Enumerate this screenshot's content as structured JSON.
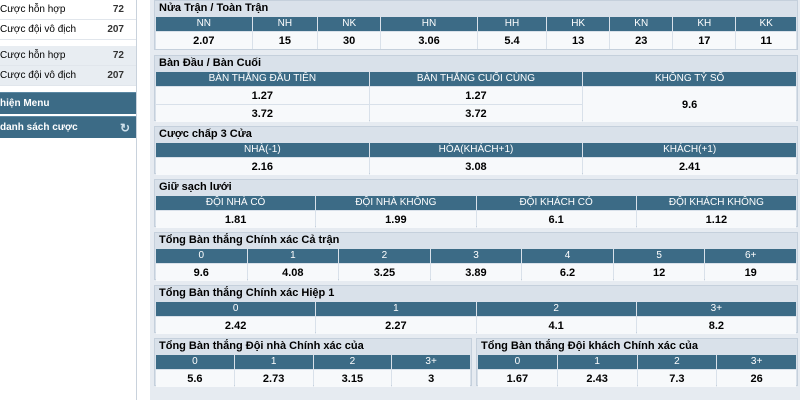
{
  "sidebar": {
    "items": [
      {
        "label": "Cược hỗn hợp",
        "count": "72"
      },
      {
        "label": "Cược đội vô địch",
        "count": "207"
      },
      {
        "label": "Cược hỗn hợp",
        "count": "72"
      },
      {
        "label": "Cược đội vô địch",
        "count": "207"
      }
    ],
    "menu_label": "hiện Menu",
    "bets_label": "danh sách cược"
  },
  "halftime": {
    "title": "Nửa Trận / Toàn Trận",
    "headers": [
      "NN",
      "NH",
      "NK",
      "HN",
      "HH",
      "HK",
      "KN",
      "KH",
      "KK"
    ],
    "values": [
      "2.07",
      "15",
      "30",
      "3.06",
      "5.4",
      "13",
      "23",
      "17",
      "11"
    ]
  },
  "first_last": {
    "title": "Bàn Đầu / Bàn Cuối",
    "headers": [
      "BÀN THẮNG ĐẦU TIÊN",
      "BÀN THẮNG CUỐI CÙNG",
      "KHÔNG TỶ SỐ"
    ],
    "row1": [
      "1.27",
      "1.27"
    ],
    "row2": [
      "3.72",
      "3.72"
    ],
    "no_score": "9.6"
  },
  "handicap3": {
    "title": "Cược chấp 3 Cửa",
    "headers": [
      "NHÀ(-1)",
      "HÒA(KHÁCH+1)",
      "KHÁCH(+1)"
    ],
    "values": [
      "2.16",
      "3.08",
      "2.41"
    ]
  },
  "clean_sheet": {
    "title": "Giữ sạch lưới",
    "headers": [
      "ĐỘI NHÀ CÓ",
      "ĐỘI NHÀ KHÔNG",
      "ĐỘI KHÁCH CÓ",
      "ĐỘI KHÁCH KHÔNG"
    ],
    "values": [
      "1.81",
      "1.99",
      "6.1",
      "1.12"
    ]
  },
  "total_full": {
    "title": "Tổng Bàn thắng Chính xác Cả trận",
    "headers": [
      "0",
      "1",
      "2",
      "3",
      "4",
      "5",
      "6+"
    ],
    "values": [
      "9.6",
      "4.08",
      "3.25",
      "3.89",
      "6.2",
      "12",
      "19"
    ]
  },
  "total_half1": {
    "title": "Tổng Bàn thắng Chính xác Hiệp 1",
    "headers": [
      "0",
      "1",
      "2",
      "3+"
    ],
    "values": [
      "2.42",
      "2.27",
      "4.1",
      "8.2"
    ]
  },
  "home_exact": {
    "title": "Tổng Bàn thắng Đội nhà Chính xác của",
    "headers": [
      "0",
      "1",
      "2",
      "3+"
    ],
    "values": [
      "5.6",
      "2.73",
      "3.15",
      "3"
    ]
  },
  "away_exact": {
    "title": "Tổng Bàn thắng Đội khách Chính xác của",
    "headers": [
      "0",
      "1",
      "2",
      "3+"
    ],
    "values": [
      "1.67",
      "2.43",
      "7.3",
      "26"
    ]
  },
  "colors": {
    "header_bg": "#3c6b86",
    "panel_bg": "#d9e1ea",
    "cell_bg": "#f7f9fb"
  }
}
